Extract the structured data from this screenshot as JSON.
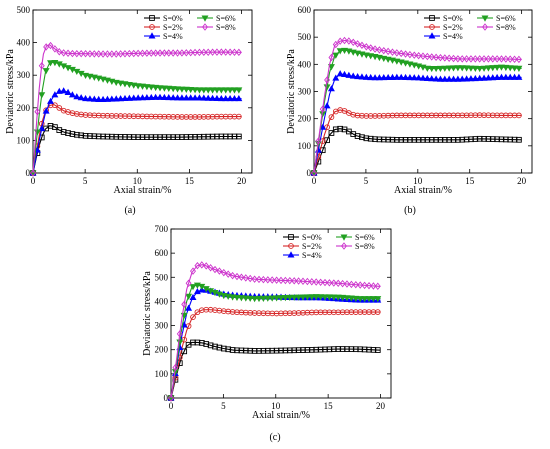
{
  "chart_data": [
    {
      "type": "line",
      "panel_label": "(a)",
      "xlabel": "Axial strain/%",
      "ylabel": "Deviatoric stress/kPa",
      "xlim": [
        0,
        21
      ],
      "ylim": [
        0,
        500
      ],
      "xticks": [
        0,
        5,
        10,
        15,
        20
      ],
      "yticks": [
        0,
        100,
        200,
        300,
        400,
        500
      ],
      "legend": "top-right",
      "grid": false,
      "series": [
        {
          "name": "S=0%",
          "color": "#000000",
          "marker": "square",
          "x": [
            0,
            0.3,
            0.6,
            0.9,
            1.2,
            1.6,
            2.0,
            2.5,
            3.0,
            4.0,
            5.0,
            6.5,
            8.0,
            10.0,
            12.0,
            14.0,
            16.0,
            18.0,
            20.0
          ],
          "y": [
            0,
            45,
            85,
            115,
            135,
            145,
            143,
            132,
            125,
            118,
            114,
            112,
            111,
            110,
            110,
            110,
            111,
            112,
            112
          ]
        },
        {
          "name": "S=2%",
          "color": "#d62728",
          "marker": "circle",
          "x": [
            0,
            0.3,
            0.6,
            0.9,
            1.2,
            1.6,
            2.0,
            2.5,
            3.0,
            4.0,
            5.0,
            6.5,
            8.0,
            10.0,
            12.0,
            14.0,
            16.0,
            18.0,
            20.0
          ],
          "y": [
            0,
            60,
            115,
            160,
            190,
            207,
            210,
            200,
            190,
            182,
            178,
            176,
            175,
            174,
            173,
            172,
            172,
            173,
            173
          ]
        },
        {
          "name": "S=4%",
          "color": "#0000ff",
          "marker": "triangle-up",
          "x": [
            0,
            0.3,
            0.6,
            0.9,
            1.2,
            1.6,
            2.0,
            2.5,
            3.0,
            3.5,
            4.0,
            5.0,
            6.5,
            8.0,
            10.0,
            12.0,
            14.0,
            16.0,
            18.0,
            20.0
          ],
          "y": [
            0,
            50,
            100,
            145,
            185,
            215,
            237,
            250,
            252,
            245,
            235,
            228,
            225,
            227,
            230,
            232,
            230,
            230,
            228,
            228
          ]
        },
        {
          "name": "S=6%",
          "color": "#22a022",
          "marker": "triangle-down",
          "x": [
            0,
            0.3,
            0.6,
            0.9,
            1.2,
            1.6,
            2.0,
            2.5,
            3.0,
            4.0,
            5.0,
            6.5,
            8.0,
            10.0,
            12.0,
            14.0,
            16.0,
            18.0,
            20.0
          ],
          "y": [
            0,
            90,
            180,
            255,
            310,
            338,
            340,
            335,
            328,
            315,
            300,
            290,
            278,
            268,
            262,
            258,
            255,
            255,
            255
          ]
        },
        {
          "name": "S=8%",
          "color": "#cc33cc",
          "marker": "diamond",
          "x": [
            0,
            0.2,
            0.4,
            0.6,
            0.8,
            1.0,
            1.3,
            1.6,
            2.0,
            2.5,
            3.0,
            4.0,
            5.0,
            6.5,
            8.0,
            10.0,
            12.0,
            14.0,
            16.0,
            18.0,
            20.0
          ],
          "y": [
            0,
            90,
            180,
            260,
            320,
            365,
            390,
            393,
            383,
            372,
            368,
            366,
            366,
            365,
            365,
            367,
            368,
            368,
            370,
            371,
            370
          ]
        }
      ]
    },
    {
      "type": "line",
      "panel_label": "(b)",
      "xlabel": "Axial strain/%",
      "ylabel": "Deviatoric stress/kPa",
      "xlim": [
        0,
        21
      ],
      "ylim": [
        0,
        600
      ],
      "xticks": [
        0,
        5,
        10,
        15,
        20
      ],
      "yticks": [
        0,
        100,
        200,
        300,
        400,
        500,
        600
      ],
      "legend": "top-right",
      "grid": false,
      "series": [
        {
          "name": "S=0%",
          "color": "#000000",
          "marker": "square",
          "x": [
            0,
            0.5,
            1.0,
            1.5,
            2.0,
            2.5,
            3.0,
            3.5,
            4.0,
            5.0,
            6.0,
            8.0,
            10.0,
            12.0,
            14.0,
            16.0,
            18.0,
            20.0
          ],
          "y": [
            0,
            50,
            100,
            140,
            160,
            163,
            160,
            150,
            138,
            128,
            124,
            122,
            122,
            122,
            122,
            126,
            124,
            122
          ]
        },
        {
          "name": "S=2%",
          "color": "#d62728",
          "marker": "circle",
          "x": [
            0,
            0.5,
            1.0,
            1.5,
            2.0,
            2.5,
            3.0,
            3.5,
            4.0,
            5.0,
            6.0,
            8.0,
            10.0,
            12.0,
            14.0,
            16.0,
            18.0,
            20.0
          ],
          "y": [
            0,
            70,
            140,
            195,
            225,
            232,
            228,
            218,
            212,
            210,
            210,
            212,
            212,
            212,
            212,
            213,
            212,
            212
          ]
        },
        {
          "name": "S=4%",
          "color": "#0000ff",
          "marker": "triangle-up",
          "x": [
            0,
            0.5,
            1.0,
            1.5,
            2.0,
            2.5,
            3.0,
            3.5,
            4.0,
            5.0,
            6.0,
            8.0,
            10.0,
            12.0,
            14.0,
            16.0,
            18.0,
            20.0
          ],
          "y": [
            0,
            100,
            200,
            290,
            345,
            365,
            362,
            358,
            355,
            352,
            350,
            352,
            350,
            345,
            345,
            348,
            352,
            352
          ]
        },
        {
          "name": "S=6%",
          "color": "#22a022",
          "marker": "triangle-down",
          "x": [
            0,
            0.5,
            1.0,
            1.5,
            2.0,
            2.5,
            3.0,
            3.5,
            4.0,
            5.0,
            6.0,
            8.0,
            10.0,
            11.0,
            12.0,
            14.0,
            16.0,
            18.0,
            20.0
          ],
          "y": [
            0,
            130,
            260,
            370,
            430,
            450,
            452,
            448,
            443,
            435,
            428,
            412,
            395,
            385,
            385,
            388,
            385,
            390,
            385
          ]
        },
        {
          "name": "S=8%",
          "color": "#cc33cc",
          "marker": "diamond",
          "x": [
            0,
            0.5,
            1.0,
            1.5,
            2.0,
            2.5,
            3.0,
            3.5,
            4.0,
            5.0,
            6.0,
            8.0,
            10.0,
            12.0,
            14.0,
            16.0,
            18.0,
            20.0
          ],
          "y": [
            0,
            140,
            280,
            400,
            470,
            485,
            488,
            485,
            478,
            465,
            455,
            442,
            432,
            425,
            420,
            420,
            420,
            418
          ]
        }
      ]
    },
    {
      "type": "line",
      "panel_label": "(c)",
      "xlabel": "Axial strain/%",
      "ylabel": "Deviatoric stress/kPa",
      "xlim": [
        0,
        21
      ],
      "ylim": [
        0,
        700
      ],
      "xticks": [
        0,
        5,
        10,
        15,
        20
      ],
      "yticks": [
        0,
        100,
        200,
        300,
        400,
        500,
        600,
        700
      ],
      "legend": "top-right",
      "grid": false,
      "series": [
        {
          "name": "S=0%",
          "color": "#000000",
          "marker": "square",
          "x": [
            0,
            0.5,
            1.0,
            1.5,
            2.0,
            2.5,
            3.0,
            3.5,
            4.0,
            5.0,
            6.0,
            8.0,
            10.0,
            12.0,
            14.0,
            16.0,
            18.0,
            20.0
          ],
          "y": [
            0,
            90,
            170,
            215,
            230,
            230,
            228,
            222,
            215,
            205,
            198,
            195,
            196,
            198,
            200,
            203,
            202,
            198
          ]
        },
        {
          "name": "S=2%",
          "color": "#d62728",
          "marker": "circle",
          "x": [
            0,
            0.5,
            1.0,
            1.5,
            2.0,
            2.5,
            3.0,
            3.5,
            4.0,
            5.0,
            6.0,
            8.0,
            10.0,
            12.0,
            14.0,
            16.0,
            18.0,
            20.0
          ],
          "y": [
            0,
            100,
            200,
            280,
            330,
            355,
            365,
            366,
            365,
            360,
            356,
            352,
            350,
            352,
            355,
            355,
            356,
            356
          ]
        },
        {
          "name": "S=4%",
          "color": "#0000ff",
          "marker": "triangle-up",
          "x": [
            0,
            0.5,
            1.0,
            1.5,
            2.0,
            2.5,
            3.0,
            3.5,
            4.0,
            5.0,
            6.0,
            8.0,
            10.0,
            12.0,
            14.0,
            16.0,
            18.0,
            20.0
          ],
          "y": [
            0,
            120,
            250,
            350,
            410,
            440,
            448,
            445,
            440,
            430,
            425,
            420,
            418,
            415,
            415,
            410,
            405,
            405
          ]
        },
        {
          "name": "S=6%",
          "color": "#22a022",
          "marker": "triangle-down",
          "x": [
            0,
            0.5,
            1.0,
            1.5,
            2.0,
            2.5,
            3.0,
            3.5,
            4.0,
            5.0,
            6.0,
            8.0,
            10.0,
            12.0,
            14.0,
            16.0,
            18.0,
            20.0
          ],
          "y": [
            0,
            130,
            280,
            400,
            460,
            468,
            462,
            450,
            440,
            425,
            418,
            412,
            415,
            418,
            420,
            418,
            412,
            412
          ]
        },
        {
          "name": "S=8%",
          "color": "#cc33cc",
          "marker": "diamond",
          "x": [
            0,
            0.5,
            1.0,
            1.5,
            2.0,
            2.5,
            3.0,
            3.5,
            4.0,
            5.0,
            6.0,
            8.0,
            10.0,
            12.0,
            14.0,
            16.0,
            18.0,
            20.0
          ],
          "y": [
            0,
            150,
            320,
            450,
            520,
            548,
            552,
            545,
            535,
            520,
            505,
            492,
            488,
            485,
            480,
            475,
            468,
            462
          ]
        }
      ]
    }
  ]
}
